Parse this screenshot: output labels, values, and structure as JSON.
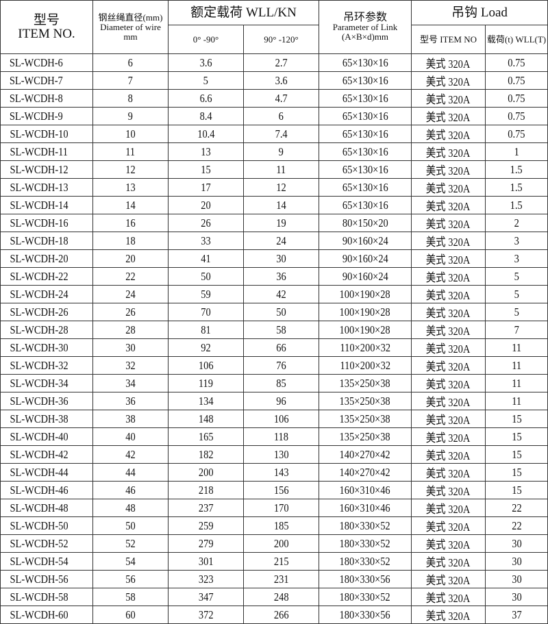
{
  "header": {
    "item_cn": "型号",
    "item_en": "ITEM NO.",
    "dia_cn": "钢丝绳直径(mm)",
    "dia_en": "Diameter of wire",
    "dia_unit": "mm",
    "wll": "额定载荷 WLL/KN",
    "angle1": "0° -90°",
    "angle2": "90° -120°",
    "link_cn": "吊环参数",
    "link_en": "Parameter of Link",
    "link_unit": "(A×B×d)mm",
    "hook": "吊钩 Load",
    "hook_item": "型号 ITEM NO",
    "hook_load": "载荷(t) WLL(T)"
  },
  "rows": [
    [
      "SL-WCDH-6",
      "6",
      "3.6",
      "2.7",
      "65×130×16",
      "美式 320A",
      "0.75"
    ],
    [
      "SL-WCDH-7",
      "7",
      "5",
      "3.6",
      "65×130×16",
      "美式 320A",
      "0.75"
    ],
    [
      "SL-WCDH-8",
      "8",
      "6.6",
      "4.7",
      "65×130×16",
      "美式 320A",
      "0.75"
    ],
    [
      "SL-WCDH-9",
      "9",
      "8.4",
      "6",
      "65×130×16",
      "美式 320A",
      "0.75"
    ],
    [
      "SL-WCDH-10",
      "10",
      "10.4",
      "7.4",
      "65×130×16",
      "美式 320A",
      "0.75"
    ],
    [
      "SL-WCDH-11",
      "11",
      "13",
      "9",
      "65×130×16",
      "美式 320A",
      "1"
    ],
    [
      "SL-WCDH-12",
      "12",
      "15",
      "11",
      "65×130×16",
      "美式 320A",
      "1.5"
    ],
    [
      "SL-WCDH-13",
      "13",
      "17",
      "12",
      "65×130×16",
      "美式 320A",
      "1.5"
    ],
    [
      "SL-WCDH-14",
      "14",
      "20",
      "14",
      "65×130×16",
      "美式 320A",
      "1.5"
    ],
    [
      "SL-WCDH-16",
      "16",
      "26",
      "19",
      "80×150×20",
      "美式 320A",
      "2"
    ],
    [
      "SL-WCDH-18",
      "18",
      "33",
      "24",
      "90×160×24",
      "美式 320A",
      "3"
    ],
    [
      "SL-WCDH-20",
      "20",
      "41",
      "30",
      "90×160×24",
      "美式 320A",
      "3"
    ],
    [
      "SL-WCDH-22",
      "22",
      "50",
      "36",
      "90×160×24",
      "美式 320A",
      "5"
    ],
    [
      "SL-WCDH-24",
      "24",
      "59",
      "42",
      "100×190×28",
      "美式 320A",
      "5"
    ],
    [
      "SL-WCDH-26",
      "26",
      "70",
      "50",
      "100×190×28",
      "美式 320A",
      "5"
    ],
    [
      "SL-WCDH-28",
      "28",
      "81",
      "58",
      "100×190×28",
      "美式 320A",
      "7"
    ],
    [
      "SL-WCDH-30",
      "30",
      "92",
      "66",
      "110×200×32",
      "美式 320A",
      "11"
    ],
    [
      "SL-WCDH-32",
      "32",
      "106",
      "76",
      "110×200×32",
      "美式 320A",
      "11"
    ],
    [
      "SL-WCDH-34",
      "34",
      "119",
      "85",
      "135×250×38",
      "美式 320A",
      "11"
    ],
    [
      "SL-WCDH-36",
      "36",
      "134",
      "96",
      "135×250×38",
      "美式 320A",
      "11"
    ],
    [
      "SL-WCDH-38",
      "38",
      "148",
      "106",
      "135×250×38",
      "美式 320A",
      "15"
    ],
    [
      "SL-WCDH-40",
      "40",
      "165",
      "118",
      "135×250×38",
      "美式 320A",
      "15"
    ],
    [
      "SL-WCDH-42",
      "42",
      "182",
      "130",
      "140×270×42",
      "美式 320A",
      "15"
    ],
    [
      "SL-WCDH-44",
      "44",
      "200",
      "143",
      "140×270×42",
      "美式 320A",
      "15"
    ],
    [
      "SL-WCDH-46",
      "46",
      "218",
      "156",
      "160×310×46",
      "美式 320A",
      "15"
    ],
    [
      "SL-WCDH-48",
      "48",
      "237",
      "170",
      "160×310×46",
      "美式 320A",
      "22"
    ],
    [
      "SL-WCDH-50",
      "50",
      "259",
      "185",
      "180×330×52",
      "美式 320A",
      "22"
    ],
    [
      "SL-WCDH-52",
      "52",
      "279",
      "200",
      "180×330×52",
      "美式 320A",
      "30"
    ],
    [
      "SL-WCDH-54",
      "54",
      "301",
      "215",
      "180×330×52",
      "美式 320A",
      "30"
    ],
    [
      "SL-WCDH-56",
      "56",
      "323",
      "231",
      "180×330×56",
      "美式 320A",
      "30"
    ],
    [
      "SL-WCDH-58",
      "58",
      "347",
      "248",
      "180×330×52",
      "美式 320A",
      "30"
    ],
    [
      "SL-WCDH-60",
      "60",
      "372",
      "266",
      "180×330×56",
      "美式 320A",
      "37"
    ]
  ]
}
